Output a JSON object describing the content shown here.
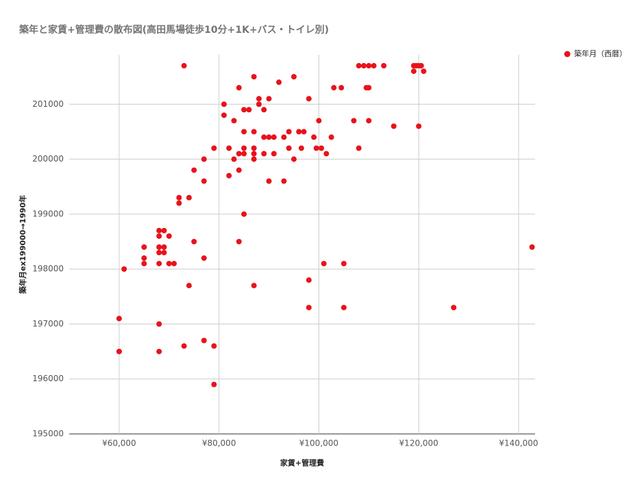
{
  "chart_data": {
    "type": "scatter",
    "title": "築年と家賃+管理費の散布図(高田馬場徒歩10分+1K+バス・トイレ別)",
    "x_label": "家賃+管理費",
    "y_label": "築年月ex199000→1990年",
    "x": [
      60000,
      60000,
      60000,
      61000,
      65000,
      65000,
      65000,
      68000,
      69000,
      68000,
      70000,
      68000,
      69000,
      68000,
      69000,
      68000,
      70000,
      71000,
      68000,
      68000,
      72000,
      72000,
      74000,
      75000,
      77000,
      77000,
      75000,
      77000,
      74000,
      77000,
      73000,
      79000,
      79000,
      73000,
      79000,
      81000,
      81000,
      82000,
      82000,
      83000,
      83000,
      84000,
      84000,
      84000,
      84000,
      85000,
      86000,
      85000,
      85000,
      85000,
      85000,
      87000,
      87000,
      87000,
      87000,
      87000,
      87000,
      88000,
      88000,
      89000,
      90000,
      89000,
      90000,
      91000,
      89000,
      91000,
      90000,
      92000,
      93000,
      93000,
      94000,
      94000,
      95000,
      95000,
      96000,
      97000,
      96500,
      98000,
      98000,
      98000,
      99000,
      99500,
      100500,
      100000,
      101500,
      101000,
      102500,
      103000,
      104500,
      105000,
      105000,
      107000,
      108000,
      108000,
      109000,
      110000,
      111000,
      113000,
      109500,
      110000,
      110000,
      115000,
      119000,
      119500,
      120000,
      120500,
      119000,
      121000,
      120000,
      127000,
      142700
    ],
    "series": [
      {
        "name": "築年月（西暦）",
        "color": "#e8131b",
        "values": [
          197100,
          196500,
          196500,
          198000,
          198400,
          198200,
          198100,
          198700,
          198700,
          198600,
          198600,
          198400,
          198400,
          198300,
          198300,
          198100,
          198100,
          198100,
          197000,
          196500,
          199300,
          199200,
          199300,
          199800,
          200000,
          199600,
          198500,
          198200,
          197700,
          196700,
          196600,
          196600,
          195900,
          201700,
          200200,
          201000,
          200800,
          200200,
          199700,
          200700,
          200000,
          201300,
          200100,
          199800,
          198500,
          200900,
          200900,
          200500,
          200200,
          200100,
          199000,
          201500,
          200500,
          200200,
          200100,
          200000,
          197700,
          201100,
          201000,
          200900,
          201100,
          200400,
          200400,
          200400,
          200100,
          200100,
          199600,
          201400,
          200400,
          199600,
          200500,
          200200,
          201500,
          200000,
          200500,
          200500,
          200200,
          201100,
          197800,
          197300,
          200400,
          200200,
          200200,
          200700,
          200100,
          198100,
          200400,
          201300,
          201300,
          198100,
          197300,
          200700,
          200200,
          201700,
          201700,
          201700,
          201700,
          201700,
          201300,
          201300,
          200700,
          200600,
          201700,
          201700,
          201700,
          201700,
          201600,
          201600,
          200600,
          197300,
          198400
        ]
      }
    ],
    "xlim": [
      50000,
      143300
    ],
    "ylim": [
      195000,
      201900
    ],
    "xticks": [
      {
        "value": 60000,
        "label": "¥60,000"
      },
      {
        "value": 80000,
        "label": "¥80,000"
      },
      {
        "value": 100000,
        "label": "¥100,000"
      },
      {
        "value": 120000,
        "label": "¥120,000"
      },
      {
        "value": 140000,
        "label": "¥140,000"
      }
    ],
    "yticks": [
      195000,
      196000,
      197000,
      198000,
      199000,
      200000,
      201000
    ],
    "grid": true,
    "legend": "top-right"
  }
}
